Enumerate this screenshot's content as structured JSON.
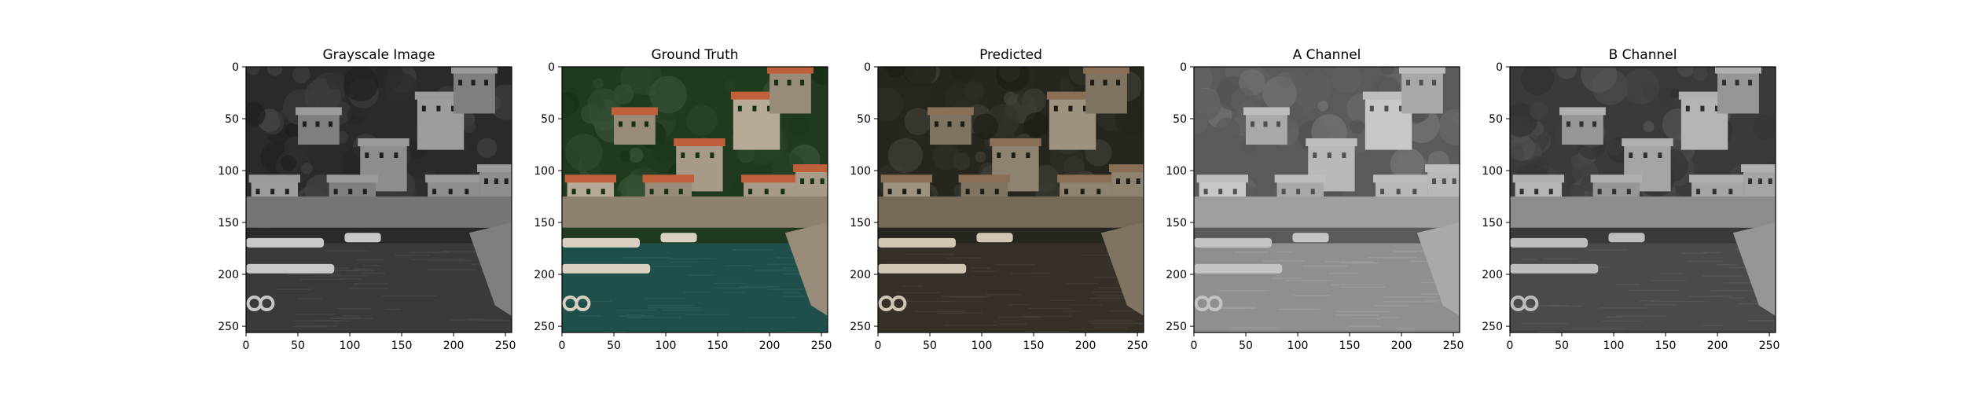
{
  "chart_data": [
    {
      "type": "image",
      "title": "Grayscale Image",
      "xticks": [
        0,
        50,
        100,
        150,
        200,
        250
      ],
      "yticks": [
        0,
        50,
        100,
        150,
        200,
        250
      ],
      "xlim": [
        0,
        256
      ],
      "ylim": [
        256,
        0
      ],
      "palette": "gray",
      "colors": {
        "sky": "#7a7a7a",
        "hill": "#2a2a2a",
        "house": "#8e8e8e",
        "roof": "#9a9a9a",
        "water": "#3a3a3a",
        "boat": "#c8c8c8"
      }
    },
    {
      "type": "image",
      "title": "Ground Truth",
      "xticks": [
        0,
        50,
        100,
        150,
        200,
        250
      ],
      "yticks": [
        0,
        50,
        100,
        150,
        200,
        250
      ],
      "xlim": [
        0,
        256
      ],
      "ylim": [
        256,
        0
      ],
      "palette": "color",
      "colors": {
        "sky": "#4a6a3a",
        "hill": "#1f3a1f",
        "house": "#a89a88",
        "roof": "#c0603a",
        "water": "#1f4f4a",
        "boat": "#d8d0c0"
      }
    },
    {
      "type": "image",
      "title": "Predicted",
      "xticks": [
        0,
        50,
        100,
        150,
        200,
        250
      ],
      "yticks": [
        0,
        50,
        100,
        150,
        200,
        250
      ],
      "xlim": [
        0,
        256
      ],
      "ylim": [
        256,
        0
      ],
      "palette": "sepia",
      "colors": {
        "sky": "#6a6352",
        "hill": "#27261e",
        "house": "#8e8270",
        "roof": "#8a6f56",
        "water": "#363028",
        "boat": "#cfc6b4"
      }
    },
    {
      "type": "image",
      "title": "A Channel",
      "xticks": [
        0,
        50,
        100,
        150,
        200,
        250
      ],
      "yticks": [
        0,
        50,
        100,
        150,
        200,
        250
      ],
      "xlim": [
        0,
        256
      ],
      "ylim": [
        256,
        0
      ],
      "palette": "gray-light",
      "colors": {
        "sky": "#9a9a9a",
        "hill": "#5a5a5a",
        "house": "#b8b8b8",
        "roof": "#bdbdbd",
        "water": "#8f8f8f",
        "boat": "#c4c4c4"
      }
    },
    {
      "type": "image",
      "title": "B Channel",
      "xticks": [
        0,
        50,
        100,
        150,
        200,
        250
      ],
      "yticks": [
        0,
        50,
        100,
        150,
        200,
        250
      ],
      "xlim": [
        0,
        256
      ],
      "ylim": [
        256,
        0
      ],
      "palette": "gray-mid",
      "colors": {
        "sky": "#7d7d7d",
        "hill": "#3a3a3a",
        "house": "#a5a5a5",
        "roof": "#b0b0b0",
        "water": "#4a4a4a",
        "boat": "#bdbdbd"
      }
    }
  ]
}
